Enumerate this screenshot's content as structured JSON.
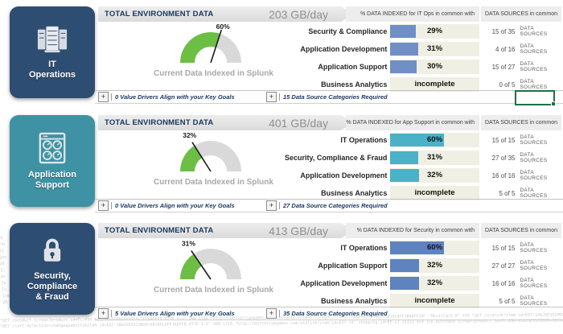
{
  "colors": {
    "navy_tile": "#2e4d72",
    "teal_tile": "#3e92a3",
    "gauge_green": "#6cbe45",
    "gauge_gray": "#d9d9d9",
    "needle": "#1a1a1a",
    "selection_green": "#1e7145"
  },
  "watermark": {
    "lines": [
      "\"GET /product.screen?product_id=FL-DSH-01&JSESSIONID=SD5SL7FF6ADFF9 HTTP 1.1\" 200 1318 \"http://buttercupgames.com/category.screen?category_id=GIFTS&JSESSIONID=SD1SL4FF10ADFF10\" \"Mozilla/5.0\" 159 \"GET /oldlink?item_id=EST-14&JSESSIONID=SD5SL9FF1ADFF3 HTTP 1.1\" 200 1665",
      "\"GET /cart.do?action=changequantity&item_id=EST-18&JSESSIONID=SD10SL6FF3ADFF6 HTTP 1.1\" 200 1318 \"http://buttercupgames.com/oldlink?item_id=EST-14\" shopping_id=RP-LI-14322 459 156 purchase screen?product_id=FL-DSH-01&JSESSIONID=SD5SL7FF6 FLOWERS category_id=SD19SL4FF10"
    ],
    "side": "7b 74s 31 2es 28 3j 4s 2b 7s 1ze 26"
  },
  "sections": [
    {
      "tile": {
        "lines": [
          "IT",
          "Operations"
        ],
        "color": "#2e4d72",
        "icon": "server-icon"
      },
      "banner": {
        "title": "TOTAL ENVIRONMENT DATA",
        "value": "203 GB/day"
      },
      "gauge": {
        "pct": 60,
        "label": "60%",
        "caption": "Current Data Indexed in Splunk"
      },
      "table": {
        "pct_header": "% DATA INDEXED for IT Ops in common with",
        "sources_header": "DATA SOURCES in common",
        "bar_color": "#708fc7",
        "rows": [
          {
            "label": "Security & Compliance",
            "pct": 29,
            "pct_label": "29%",
            "sources": "15 of 35",
            "sources_label": "DATA SOURCES"
          },
          {
            "label": "Application Development",
            "pct": 31,
            "pct_label": "31%",
            "sources": "4 of 16",
            "sources_label": "DATA SOURCES"
          },
          {
            "label": "Application Support",
            "pct": 30,
            "pct_label": "30%",
            "sources": "15 of 27",
            "sources_label": "DATA SOURCES"
          },
          {
            "label": "Business Analytics",
            "pct": null,
            "pct_label": "incomplete",
            "sources": "0 of 5",
            "sources_label": "DATA SOURCES"
          }
        ]
      },
      "footer": {
        "plus": "+",
        "drivers": "0 Value Drivers Align with your Key Goals",
        "categories": "15 Data Source Categories Required"
      }
    },
    {
      "tile": {
        "lines": [
          "Application",
          "Support"
        ],
        "color": "#3e92a3",
        "icon": "gauges-icon"
      },
      "banner": {
        "title": "TOTAL ENVIRONMENT DATA",
        "value": "401 GB/day"
      },
      "gauge": {
        "pct": 32,
        "label": "32%",
        "caption": "Current Data Indexed in Splunk"
      },
      "table": {
        "pct_header": "% DATA INDEXED for App Support in common with",
        "sources_header": "DATA SOURCES in common",
        "bar_color": "#4bb1c7",
        "rows": [
          {
            "label": "IT Operations",
            "pct": 60,
            "pct_label": "60%",
            "sources": "15 of 15",
            "sources_label": "DATA SOURCES"
          },
          {
            "label": "Security, Compliance & Fraud",
            "pct": 31,
            "pct_label": "31%",
            "sources": "27 of 35",
            "sources_label": "DATA SOURCES"
          },
          {
            "label": "Application Development",
            "pct": 32,
            "pct_label": "32%",
            "sources": "16 of 16",
            "sources_label": "DATA SOURCES"
          },
          {
            "label": "Business Analytics",
            "pct": null,
            "pct_label": "incomplete",
            "sources": "5 of 5",
            "sources_label": "DATA SOURCES"
          }
        ]
      },
      "footer": {
        "plus": "+",
        "drivers": "0 Value Drivers Align with your Key Goals",
        "categories": "27 Data Source Categories Required"
      }
    },
    {
      "tile": {
        "lines": [
          "Security,",
          "Compliance",
          "& Fraud"
        ],
        "color": "#2e4d72",
        "icon": "lock-icon"
      },
      "banner": {
        "title": "TOTAL ENVIRONMENT DATA",
        "value": "413 GB/day"
      },
      "gauge": {
        "pct": 31,
        "label": "31%",
        "caption": "Current Data Indexed in Splunk"
      },
      "table": {
        "pct_header": "% DATA INDEXED for Security in common with",
        "sources_header": "DATA SOURCES in common",
        "bar_color": "#5e83bf",
        "rows": [
          {
            "label": "IT Operations",
            "pct": 60,
            "pct_label": "60%",
            "sources": "15 of 15",
            "sources_label": "DATA SOURCES"
          },
          {
            "label": "Application Support",
            "pct": 32,
            "pct_label": "32%",
            "sources": "27 of 27",
            "sources_label": "DATA SOURCES"
          },
          {
            "label": "Application Development",
            "pct": 32,
            "pct_label": "32%",
            "sources": "16 of 16",
            "sources_label": "DATA SOURCES"
          },
          {
            "label": "Business Analytics",
            "pct": null,
            "pct_label": "incomplete",
            "sources": "5 of 5",
            "sources_label": "DATA SOURCES"
          }
        ]
      },
      "footer": {
        "plus": "+",
        "drivers": "5 Value Drivers Align with your Key Goals",
        "categories": "35 Data Source Categories Required"
      }
    }
  ]
}
